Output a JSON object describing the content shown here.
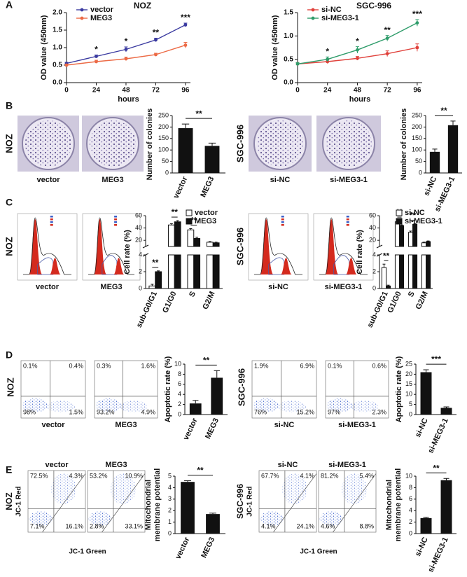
{
  "figure": {
    "panel_letters": [
      "A",
      "B",
      "C",
      "D",
      "E"
    ],
    "B": {
      "groups": [
        {
          "cell_line": "NOZ",
          "images": [
            "vector",
            "MEG3"
          ]
        },
        {
          "cell_line": "SGC-996",
          "images": [
            "si-NC",
            "si-MEG3-1"
          ]
        }
      ]
    },
    "C": {
      "groups": [
        {
          "cell_line": "NOZ",
          "images": [
            "vector",
            "MEG3"
          ]
        },
        {
          "cell_line": "SGC-996",
          "images": [
            "si-NC",
            "si-MEG3-1"
          ]
        }
      ]
    },
    "D": {
      "groups": [
        {
          "cell_line": "NOZ",
          "plots": [
            {
              "label": "vector",
              "quadrants": [
                "0.1%",
                "0.4%",
                "98%",
                "1.5%"
              ]
            },
            {
              "label": "MEG3",
              "quadrants": [
                "0.3%",
                "1.6%",
                "93.2%",
                "4.9%"
              ]
            }
          ]
        },
        {
          "cell_line": "SGC-996",
          "plots": [
            {
              "label": "si-NC",
              "quadrants": [
                "1.9%",
                "6.9%",
                "76%",
                "15.2%"
              ]
            },
            {
              "label": "si-MEG3-1",
              "quadrants": [
                "0.1%",
                "0.6%",
                "97%",
                "2.3%"
              ]
            }
          ]
        }
      ]
    },
    "E": {
      "groups": [
        {
          "cell_line": "NOZ",
          "x_label": "JC-1 Green",
          "y_label": "JC-1 Red",
          "plots": [
            {
              "label": "vector",
              "quadrants": [
                "72.5%",
                "4.3%",
                "7.1%",
                "16.1%"
              ]
            },
            {
              "label": "MEG3",
              "quadrants": [
                "53.2%",
                "10.9%",
                "2.8%",
                "33.1%"
              ]
            }
          ]
        },
        {
          "cell_line": "SGC-996",
          "x_label": "JC-1 Green",
          "y_label": "JC-1 Red",
          "plots": [
            {
              "label": "si-NC",
              "quadrants": [
                "67.7%",
                "4.1%",
                "4.1%",
                "24.1%"
              ]
            },
            {
              "label": "si-MEG3-1",
              "quadrants": [
                "81.2%",
                "5.4%",
                "4.6%",
                "8.8%"
              ]
            }
          ]
        }
      ]
    }
  },
  "chart_data": [
    {
      "type": "line",
      "title": "NOZ",
      "x_label": "hours",
      "y_label": "OD value (450nm)",
      "x": [
        0,
        24,
        48,
        72,
        96
      ],
      "xlim": [
        0,
        100
      ],
      "xticks": [
        0,
        24,
        48,
        72,
        96
      ],
      "ylim": [
        0,
        2
      ],
      "yticks": [
        {
          "value": 0,
          "label": "0.0"
        },
        0.5,
        {
          "value": 1,
          "label": "1.0"
        },
        1.5,
        {
          "value": 2,
          "label": "2.0"
        }
      ],
      "legend": "upper left",
      "series": [
        {
          "name": "vector",
          "color": "#3a3aa0",
          "values": [
            0.55,
            0.75,
            0.95,
            1.22,
            1.65
          ],
          "errors": [
            0.03,
            0.04,
            0.07,
            0.05,
            0.05
          ]
        },
        {
          "name": "MEG3",
          "color": "#ec6a45",
          "values": [
            0.5,
            0.6,
            0.68,
            0.8,
            1.07
          ],
          "errors": [
            0.03,
            0.04,
            0.05,
            0.04,
            0.08
          ]
        }
      ],
      "annotations": [
        "",
        "*",
        "*",
        "**",
        "***"
      ]
    },
    {
      "type": "line",
      "title": "SGC-996",
      "x_label": "hours",
      "y_label": "OD value (450nm)",
      "x": [
        0,
        24,
        48,
        72,
        96
      ],
      "xlim": [
        0,
        100
      ],
      "xticks": [
        0,
        24,
        48,
        72,
        96
      ],
      "ylim": [
        0,
        1.5
      ],
      "yticks": [
        {
          "value": 0,
          "label": "0.0"
        },
        0.5,
        {
          "value": 1,
          "label": "1.0"
        },
        1.5
      ],
      "legend": "upper left",
      "series": [
        {
          "name": "si-NC",
          "color": "#e0403a",
          "values": [
            0.4,
            0.45,
            0.52,
            0.62,
            0.75
          ],
          "errors": [
            0.03,
            0.04,
            0.04,
            0.06,
            0.08
          ]
        },
        {
          "name": "si-MEG3-1",
          "color": "#2e9c6a",
          "values": [
            0.4,
            0.5,
            0.7,
            0.95,
            1.28
          ],
          "errors": [
            0.03,
            0.05,
            0.07,
            0.06,
            0.07
          ]
        }
      ],
      "annotations": [
        null,
        "*",
        "*",
        "**",
        "***"
      ]
    },
    {
      "type": "bar",
      "y_label": "Number of colonies",
      "categories": [
        "vector",
        "MEG3"
      ],
      "values": [
        195,
        118
      ],
      "errors": [
        18,
        12
      ],
      "color": "#111111",
      "ylim": [
        0,
        250
      ],
      "yticks": [
        0,
        50,
        100,
        150,
        200,
        250
      ],
      "annotation": "**"
    },
    {
      "type": "bar",
      "y_label": "Number of colonies",
      "categories": [
        "si-NC",
        "si-MEG3-1"
      ],
      "values": [
        92,
        208
      ],
      "errors": [
        12,
        18
      ],
      "color": "#111111",
      "ylim": [
        0,
        250
      ],
      "yticks": [
        0,
        50,
        100,
        150,
        200,
        250
      ],
      "annotation": "**"
    },
    {
      "type": "broken_bar",
      "y_label": "Cell rate (%)",
      "categories": [
        "sub-G0/G1",
        "G1/G0",
        "S",
        "G2/M"
      ],
      "ylim_lower": [
        0,
        4
      ],
      "yticks_lower": [
        0,
        2,
        4
      ],
      "ylim_upper": [
        10,
        60
      ],
      "yticks_upper": [
        20,
        40,
        60
      ],
      "legend": "upper right",
      "series": [
        {
          "name": "vector",
          "color": "#ffffff",
          "values": [
            0.3,
            45,
            37,
            17
          ],
          "errors": [
            0.2,
            2,
            2,
            1
          ]
        },
        {
          "name": "MEG3",
          "color": "#111111",
          "values": [
            2,
            50,
            23,
            16
          ],
          "errors": [
            0.1,
            2,
            2,
            1
          ]
        }
      ],
      "annotations": [
        "**",
        "**",
        "**",
        null
      ]
    },
    {
      "type": "broken_bar",
      "y_label": "Cell rate (%)",
      "categories": [
        "sub-G0/G1",
        "G1/G0",
        "S",
        "G2/M"
      ],
      "ylim_lower": [
        0,
        4
      ],
      "yticks_lower": [
        0,
        2,
        4
      ],
      "ylim_upper": [
        10,
        60
      ],
      "yticks_upper": [
        20,
        40,
        60
      ],
      "legend": "upper right",
      "series": [
        {
          "name": "si-NC",
          "color": "#ffffff",
          "values": [
            2.5,
            50,
            33,
            16
          ],
          "errors": [
            0.4,
            2,
            2,
            1
          ]
        },
        {
          "name": "si-MEG3-1",
          "color": "#111111",
          "values": [
            0.3,
            44,
            46,
            18
          ],
          "errors": [
            0.1,
            1,
            1,
            1
          ]
        }
      ],
      "annotations": [
        "**",
        "**",
        "**",
        null
      ]
    },
    {
      "type": "bar",
      "y_label": "Apoptotic rate (%)",
      "categories": [
        "vector",
        "MEG3"
      ],
      "values": [
        2.2,
        7.3
      ],
      "errors": [
        0.6,
        1.4
      ],
      "color": "#111111",
      "ylim": [
        0,
        10
      ],
      "yticks": [
        0,
        2,
        4,
        6,
        8,
        10
      ],
      "annotation": "**"
    },
    {
      "type": "bar",
      "y_label": "Apoptotic rate (%)",
      "categories": [
        "si-NC",
        "si-MEG3-1"
      ],
      "values": [
        21,
        3.3
      ],
      "errors": [
        1.2,
        0.5
      ],
      "color": "#111111",
      "ylim": [
        0,
        25
      ],
      "yticks": [
        0,
        5,
        10,
        15,
        20,
        25
      ],
      "annotation": "***"
    },
    {
      "type": "bar",
      "y_label": [
        "Mitochondrial",
        "membrane potential"
      ],
      "categories": [
        "vector",
        "MEG3"
      ],
      "values": [
        4.5,
        1.7
      ],
      "errors": [
        0.1,
        0.08
      ],
      "color": "#111111",
      "ylim": [
        0,
        5
      ],
      "yticks": [
        0,
        1,
        2,
        3,
        4,
        5
      ],
      "annotation": "**"
    },
    {
      "type": "bar",
      "y_label": [
        "Mitochondrial",
        "membrane potential"
      ],
      "categories": [
        "si-NC",
        "si-MEG3-1"
      ],
      "values": [
        2.7,
        9.3
      ],
      "errors": [
        0.15,
        0.3
      ],
      "color": "#111111",
      "ylim": [
        0,
        10
      ],
      "yticks": [
        0,
        2,
        4,
        6,
        8,
        10
      ],
      "annotation": "**"
    }
  ]
}
